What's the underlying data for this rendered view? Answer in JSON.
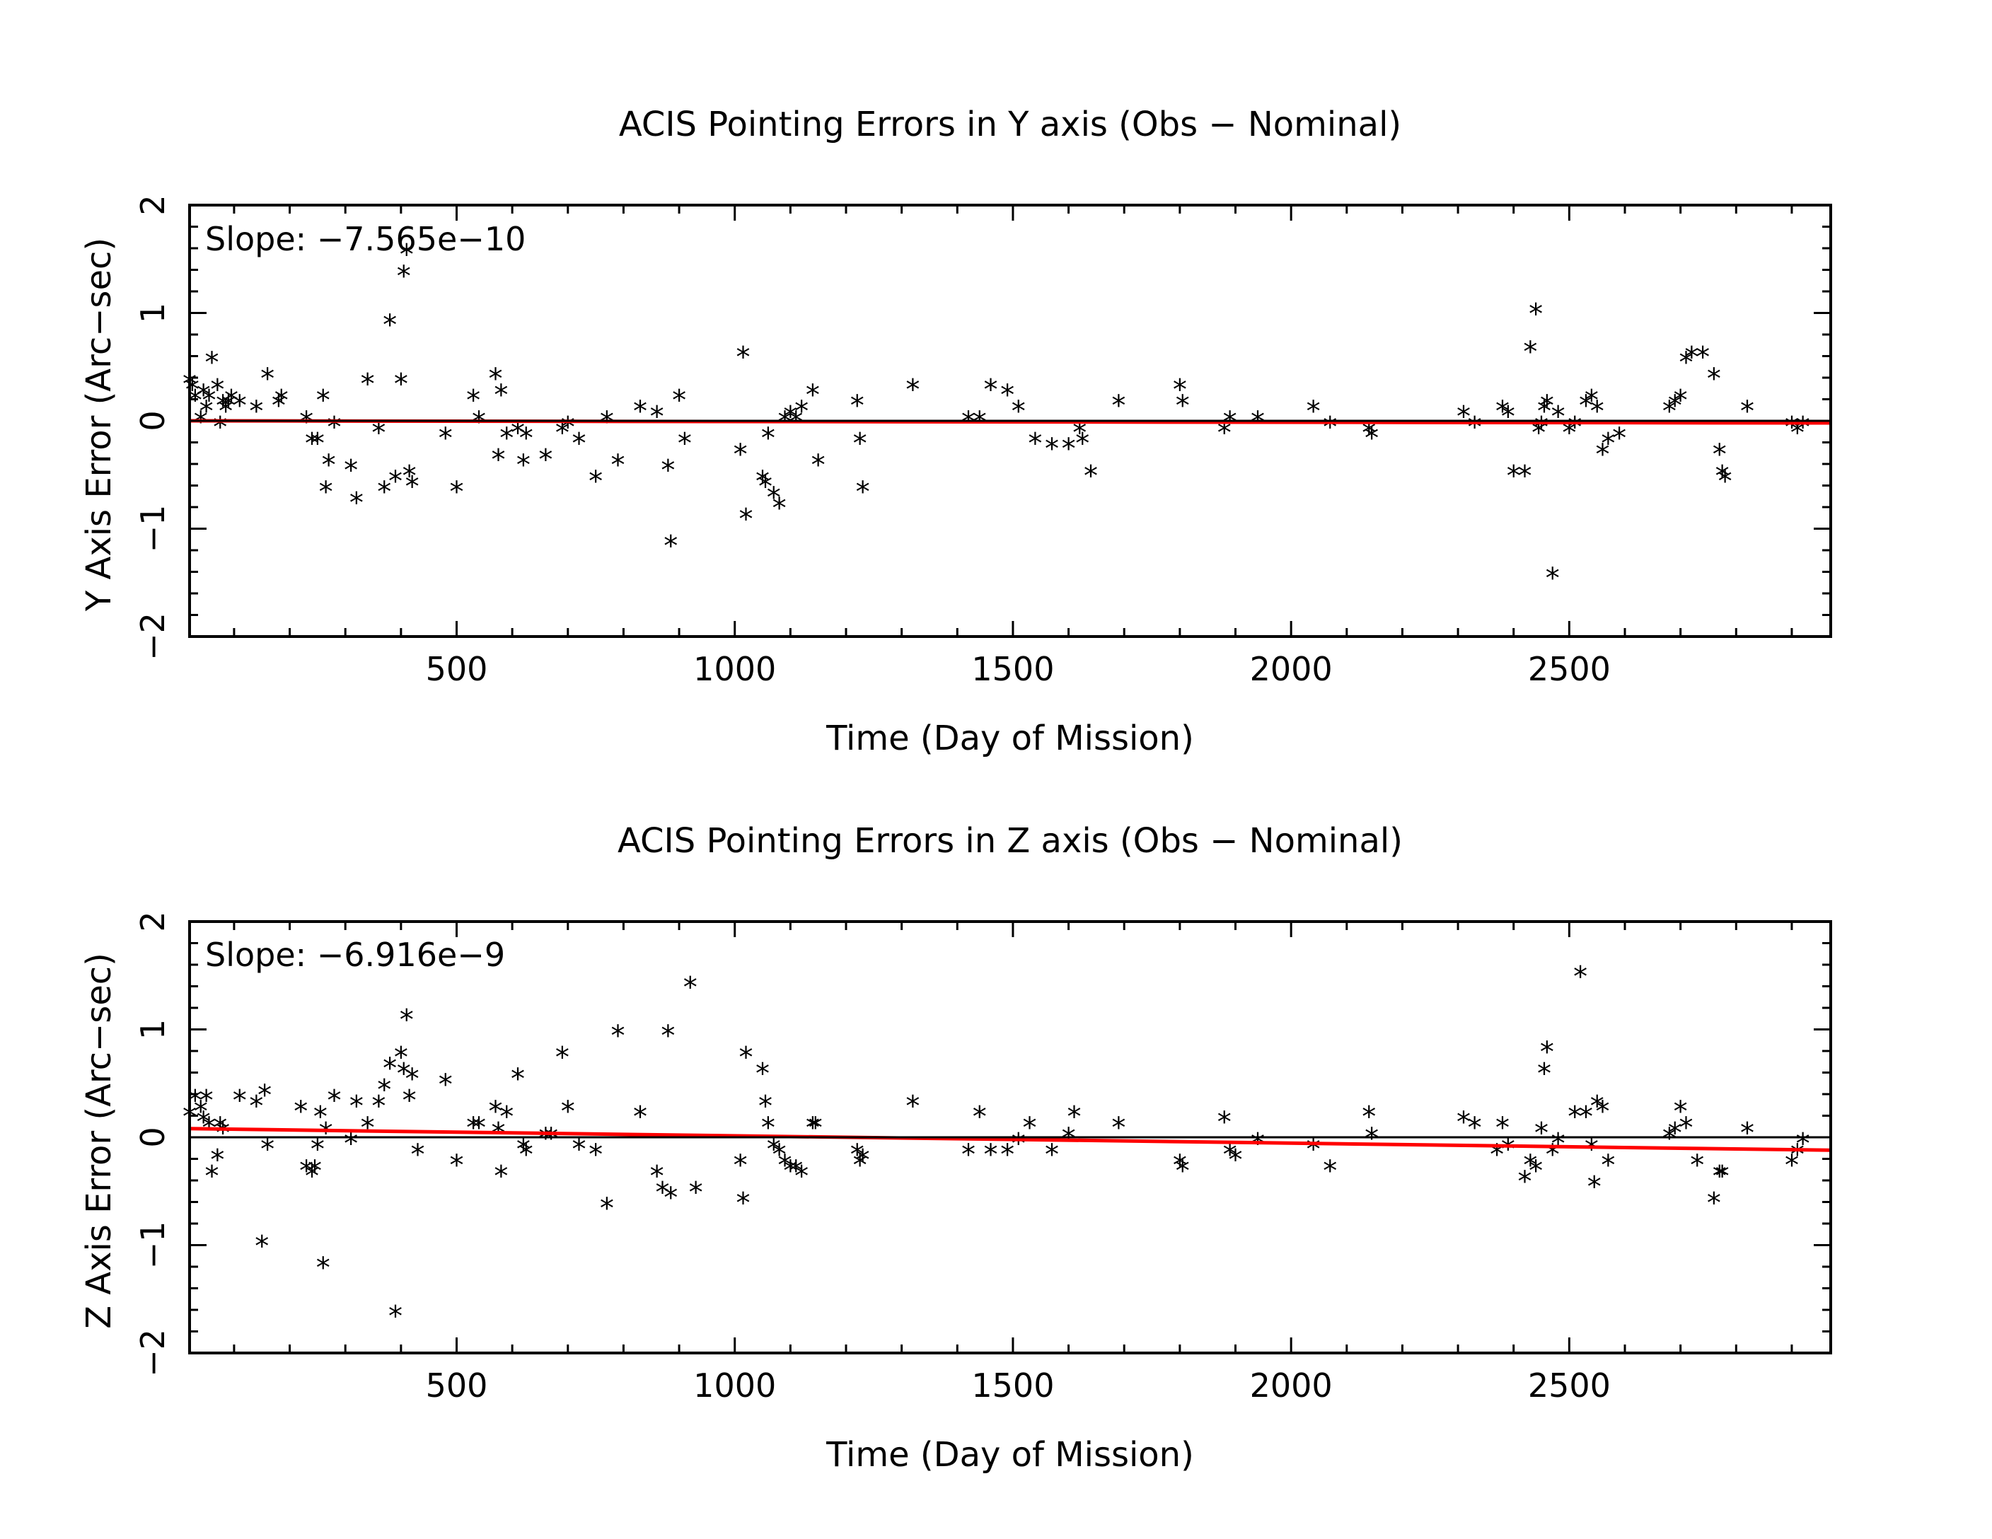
{
  "colors": {
    "background": "#ffffff",
    "axes": "#000000",
    "points": "#000000",
    "fit_line": "#ff0000",
    "zero_line": "#000000"
  },
  "chart_data": [
    {
      "type": "scatter",
      "title": "ACIS Pointing Errors in Y axis (Obs - Nominal)",
      "xlabel": "Time (Day of Mission)",
      "ylabel": "Y Axis Error (Arc-sec)",
      "xlim": [
        20,
        2970
      ],
      "ylim": [
        -2,
        2
      ],
      "x_ticks": [
        500,
        1000,
        1500,
        2000,
        2500
      ],
      "y_ticks": [
        -2,
        -1,
        0,
        1,
        2
      ],
      "grid": false,
      "marker": "*",
      "annotation": "Slope: -7.565e-10",
      "fit_line": {
        "x": [
          20,
          2970
        ],
        "y": [
          0.0,
          -0.02
        ]
      },
      "zero_line": 0,
      "series": [
        {
          "x": [
            20,
            25,
            30,
            40,
            45,
            50,
            55,
            60,
            70,
            75,
            80,
            85,
            90,
            95,
            110,
            140,
            160,
            180,
            185,
            230,
            240,
            250,
            260,
            265,
            270,
            280,
            310,
            320,
            340,
            360,
            370,
            380,
            390,
            400,
            405,
            410,
            415,
            420,
            480,
            500,
            530,
            540,
            570,
            575,
            580,
            590,
            610,
            620,
            625,
            660,
            690,
            700,
            720,
            750,
            770,
            790,
            830,
            860,
            880,
            885,
            900,
            910,
            1010,
            1015,
            1020,
            1050,
            1055,
            1060,
            1070,
            1080,
            1090,
            1100,
            1110,
            1120,
            1140,
            1150,
            1220,
            1225,
            1230,
            1320,
            1420,
            1440,
            1460,
            1490,
            1510,
            1540,
            1570,
            1600,
            1620,
            1625,
            1640,
            1690,
            1800,
            1805,
            1880,
            1890,
            1940,
            2040,
            2070,
            2140,
            2145,
            2310,
            2330,
            2380,
            2390,
            2400,
            2420,
            2430,
            2440,
            2445,
            2450,
            2455,
            2460,
            2470,
            2480,
            2500,
            2510,
            2530,
            2540,
            2550,
            2560,
            2570,
            2590,
            2680,
            2690,
            2700,
            2710,
            2720,
            2740,
            2760,
            2770,
            2775,
            2780,
            2820,
            2900,
            2910,
            2920
          ],
          "y": [
            0.35,
            0.3,
            0.2,
            0.0,
            0.25,
            0.1,
            0.2,
            0.55,
            0.3,
            -0.05,
            0.15,
            0.1,
            0.15,
            0.2,
            0.15,
            0.1,
            0.4,
            0.15,
            0.2,
            0.0,
            -0.2,
            -0.2,
            0.2,
            -0.65,
            -0.4,
            -0.05,
            -0.45,
            -0.75,
            0.35,
            -0.1,
            -0.65,
            0.9,
            -0.55,
            0.35,
            1.35,
            1.55,
            -0.5,
            -0.6,
            -0.15,
            -0.65,
            0.2,
            0.0,
            0.4,
            -0.35,
            0.25,
            -0.15,
            -0.1,
            -0.4,
            -0.15,
            -0.35,
            -0.1,
            -0.05,
            -0.2,
            -0.55,
            0.0,
            -0.4,
            0.1,
            0.05,
            -0.45,
            -1.15,
            0.2,
            -0.2,
            -0.3,
            0.6,
            -0.9,
            -0.55,
            -0.6,
            -0.15,
            -0.7,
            -0.8,
            0.0,
            0.05,
            0.0,
            0.1,
            0.25,
            -0.4,
            0.15,
            -0.2,
            -0.65,
            0.3,
            0.0,
            0.0,
            0.3,
            0.25,
            0.1,
            -0.2,
            -0.25,
            -0.25,
            -0.1,
            -0.2,
            -0.5,
            0.15,
            0.3,
            0.15,
            -0.1,
            0.0,
            0.0,
            0.1,
            -0.05,
            -0.1,
            -0.15,
            0.05,
            -0.05,
            0.1,
            0.05,
            -0.5,
            -0.5,
            0.65,
            1.0,
            -0.1,
            -0.05,
            0.1,
            0.15,
            -1.45,
            0.05,
            -0.1,
            -0.05,
            0.15,
            0.2,
            0.1,
            -0.3,
            -0.2,
            -0.15,
            0.1,
            0.15,
            0.2,
            0.55,
            0.6,
            0.6,
            0.4,
            -0.3,
            -0.5,
            -0.55,
            0.1,
            -0.05,
            -0.1,
            -0.05
          ]
        }
      ]
    },
    {
      "type": "scatter",
      "title": "ACIS Pointing Errors in  Z axis (Obs - Nominal)",
      "xlabel": "Time (Day of Mission)",
      "ylabel": "Z Axis Error (Arc-sec)",
      "xlim": [
        20,
        2970
      ],
      "ylim": [
        -2,
        2
      ],
      "x_ticks": [
        500,
        1000,
        1500,
        2000,
        2500
      ],
      "y_ticks": [
        -2,
        -1,
        0,
        1,
        2
      ],
      "grid": false,
      "marker": "*",
      "annotation": "Slope: -6.916e-9",
      "fit_line": {
        "x": [
          20,
          2970
        ],
        "y": [
          0.08,
          -0.12
        ]
      },
      "zero_line": 0,
      "series": [
        {
          "x": [
            20,
            30,
            40,
            45,
            50,
            55,
            60,
            70,
            75,
            80,
            110,
            140,
            150,
            155,
            160,
            220,
            230,
            240,
            245,
            250,
            255,
            260,
            265,
            280,
            310,
            320,
            340,
            360,
            370,
            380,
            390,
            400,
            405,
            410,
            415,
            420,
            430,
            480,
            500,
            530,
            540,
            570,
            575,
            580,
            590,
            610,
            620,
            625,
            660,
            670,
            690,
            700,
            720,
            750,
            770,
            790,
            830,
            860,
            870,
            880,
            885,
            920,
            930,
            1010,
            1015,
            1020,
            1050,
            1055,
            1060,
            1070,
            1080,
            1090,
            1100,
            1110,
            1120,
            1140,
            1145,
            1220,
            1225,
            1230,
            1320,
            1420,
            1440,
            1460,
            1490,
            1510,
            1530,
            1570,
            1600,
            1610,
            1690,
            1800,
            1805,
            1880,
            1890,
            1900,
            1940,
            2040,
            2070,
            2140,
            2145,
            2310,
            2330,
            2370,
            2380,
            2390,
            2420,
            2430,
            2440,
            2450,
            2455,
            2460,
            2470,
            2480,
            2510,
            2520,
            2530,
            2540,
            2545,
            2550,
            2560,
            2570,
            2680,
            2690,
            2700,
            2710,
            2730,
            2760,
            2770,
            2775,
            2820,
            2900,
            2910,
            2920
          ],
          "y": [
            0.2,
            0.35,
            0.25,
            0.15,
            0.35,
            0.1,
            -0.35,
            -0.2,
            0.1,
            0.05,
            0.35,
            0.3,
            -1.0,
            0.4,
            -0.1,
            0.25,
            -0.3,
            -0.35,
            -0.3,
            -0.1,
            0.2,
            -1.2,
            0.05,
            0.35,
            -0.05,
            0.3,
            0.1,
            0.3,
            0.45,
            0.65,
            -1.65,
            0.75,
            0.6,
            1.1,
            0.35,
            0.55,
            -0.15,
            0.5,
            -0.25,
            0.1,
            0.1,
            0.25,
            0.05,
            -0.35,
            0.2,
            0.55,
            -0.1,
            -0.15,
            0.0,
            0.0,
            0.75,
            0.25,
            -0.1,
            -0.15,
            -0.65,
            0.95,
            0.2,
            -0.35,
            -0.5,
            0.95,
            -0.55,
            1.4,
            -0.5,
            -0.25,
            -0.6,
            0.75,
            0.6,
            0.3,
            0.1,
            -0.1,
            -0.15,
            -0.25,
            -0.3,
            -0.3,
            -0.35,
            0.1,
            0.1,
            -0.15,
            -0.25,
            -0.2,
            0.3,
            -0.15,
            0.2,
            -0.15,
            -0.15,
            -0.05,
            0.1,
            -0.15,
            0.0,
            0.2,
            0.1,
            -0.25,
            -0.3,
            0.15,
            -0.15,
            -0.2,
            -0.05,
            -0.1,
            -0.3,
            0.2,
            0.0,
            0.15,
            0.1,
            -0.15,
            0.1,
            -0.1,
            -0.4,
            -0.25,
            -0.3,
            0.05,
            0.6,
            0.8,
            -0.15,
            -0.05,
            0.2,
            1.5,
            0.2,
            -0.1,
            -0.45,
            0.3,
            0.25,
            -0.25,
            0.0,
            0.05,
            0.25,
            0.1,
            -0.25,
            -0.6,
            -0.35,
            -0.35,
            0.05,
            -0.25,
            -0.15,
            -0.05
          ]
        }
      ]
    }
  ]
}
